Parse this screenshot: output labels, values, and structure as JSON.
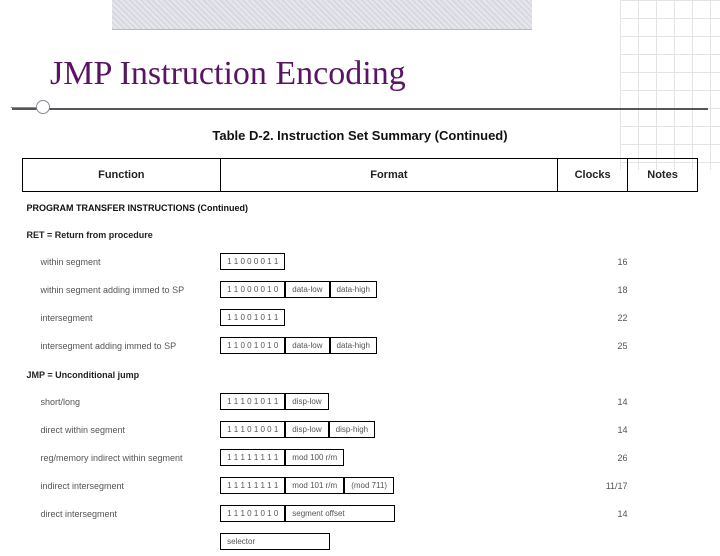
{
  "slide": {
    "title": "JMP Instruction Encoding"
  },
  "table": {
    "caption": "Table D-2.  Instruction Set Summary (Continued)",
    "headers": {
      "func": "Function",
      "format": "Format",
      "clocks": "Clocks",
      "notes": "Notes"
    },
    "section": "PROGRAM TRANSFER INSTRUCTIONS (Continued)",
    "ret": {
      "label": "RET = Return from procedure",
      "rows": [
        {
          "desc": "within segment",
          "bits": "1 1 0 0 0 0 1 1",
          "b2": "",
          "b3": "",
          "clk": "16"
        },
        {
          "desc": "within segment adding immed to SP",
          "bits": "1 1 0 0 0 0 1 0",
          "b2": "data-low",
          "b3": "data-high",
          "clk": "18"
        },
        {
          "desc": "intersegment",
          "bits": "1 1 0 0 1 0 1 1",
          "b2": "",
          "b3": "",
          "clk": "22"
        },
        {
          "desc": "intersegment adding immed to SP",
          "bits": "1 1 0 0 1 0 1 0",
          "b2": "data-low",
          "b3": "data-high",
          "clk": "25"
        }
      ]
    },
    "jmp": {
      "label": "JMP = Unconditional jump",
      "rows": [
        {
          "desc": "short/long",
          "bits": "1 1 1 0 1 0 1 1",
          "b2": "disp-low",
          "b3": "",
          "clk": "14"
        },
        {
          "desc": "direct within segment",
          "bits": "1 1 1 0 1 0 0 1",
          "b2": "disp-low",
          "b3": "disp-high",
          "clk": "14"
        },
        {
          "desc": "reg/memory indirect within segment",
          "bits": "1 1 1 1 1 1 1 1",
          "b2": "mod 100 r/m",
          "b3": "",
          "clk": "26"
        },
        {
          "desc": "indirect intersegment",
          "bits": "1 1 1 1 1 1 1 1",
          "b2": "mod 101 r/m",
          "b3": "(mod 711)",
          "clk": "11/17"
        },
        {
          "desc": "direct intersegment",
          "bits": "1 1 1 0 1 0 1 0",
          "b2": "segment offset",
          "b3": "",
          "clk": "14"
        },
        {
          "desc": "",
          "bits": "",
          "b2": "selector",
          "b3": "",
          "clk": ""
        }
      ]
    }
  },
  "style": {
    "title_color": "#5a1464",
    "col_widths": {
      "func": 198,
      "format": 338,
      "clocks": 70,
      "notes": 70
    }
  }
}
